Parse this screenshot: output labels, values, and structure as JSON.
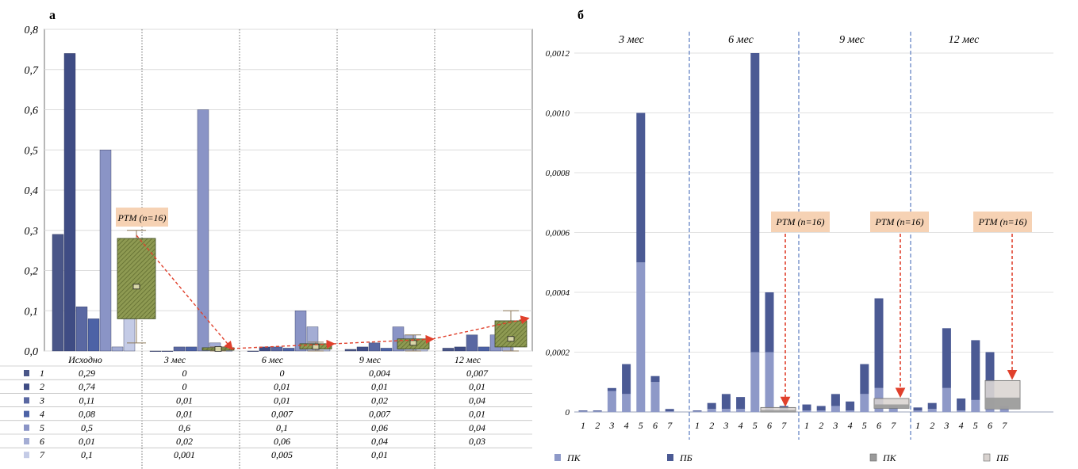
{
  "chart_data": [
    {
      "panel": "а",
      "type": "bar",
      "groups": [
        "Исходно",
        "3 мес",
        "6 мес",
        "9 мес",
        "12 мес"
      ],
      "ylim": [
        0,
        0.8
      ],
      "yticks": [
        "0,0",
        "0,1",
        "0,2",
        "0,3",
        "0,4",
        "0,5",
        "0,6",
        "0,7",
        "0,8"
      ],
      "series": [
        {
          "name": "1",
          "values": [
            0.29,
            0,
            0,
            0.004,
            0.007
          ],
          "labels": [
            "0,29",
            "0",
            "0",
            "0,004",
            "0,007"
          ]
        },
        {
          "name": "2",
          "values": [
            0.74,
            0,
            0.01,
            0.01,
            0.01
          ],
          "labels": [
            "0,74",
            "0",
            "0,01",
            "0,01",
            "0,01"
          ]
        },
        {
          "name": "3",
          "values": [
            0.11,
            0.01,
            0.01,
            0.02,
            0.04
          ],
          "labels": [
            "0,11",
            "0,01",
            "0,01",
            "0,02",
            "0,04"
          ]
        },
        {
          "name": "4",
          "values": [
            0.08,
            0.01,
            0.007,
            0.007,
            0.01
          ],
          "labels": [
            "0,08",
            "0,01",
            "0,007",
            "0,007",
            "0,01"
          ]
        },
        {
          "name": "5",
          "values": [
            0.5,
            0.6,
            0.1,
            0.06,
            0.04
          ],
          "labels": [
            "0,5",
            "0,6",
            "0,1",
            "0,06",
            "0,04"
          ]
        },
        {
          "name": "6",
          "values": [
            0.01,
            0.02,
            0.06,
            0.04,
            0.03
          ],
          "labels": [
            "0,01",
            "0,02",
            "0,06",
            "0,04",
            "0,03"
          ]
        },
        {
          "name": "7",
          "values": [
            0.1,
            0.001,
            0.005,
            0.01,
            null
          ],
          "labels": [
            "0,1",
            "0,001",
            "0,005",
            "0,01",
            ""
          ]
        }
      ],
      "box": {
        "label": "РТМ (n=16)",
        "by_group": [
          {
            "group": "Исходно",
            "q1": 0.08,
            "q3": 0.28,
            "median": 0.16,
            "min": 0.02,
            "max": 0.3
          },
          {
            "group": "3 мес",
            "q1": 0.002,
            "q3": 0.008,
            "median": 0.005,
            "min": 0.0,
            "max": 0.01
          },
          {
            "group": "6 мес",
            "q1": 0.005,
            "q3": 0.018,
            "median": 0.01,
            "min": 0.0,
            "max": 0.022
          },
          {
            "group": "9 мес",
            "q1": 0.005,
            "q3": 0.03,
            "median": 0.02,
            "min": 0.0,
            "max": 0.04
          },
          {
            "group": "12 мес",
            "q1": 0.01,
            "q3": 0.075,
            "median": 0.03,
            "min": 0.0,
            "max": 0.1
          }
        ]
      },
      "colors": [
        "#4a5688",
        "#3f4c84",
        "#5a68a2",
        "#4c62a6",
        "#8a94c6",
        "#a4add4",
        "#c4cbe6"
      ],
      "grid": true
    },
    {
      "panel": "б",
      "type": "bar",
      "stacked": true,
      "groups": [
        "3 мес",
        "6 мес",
        "9 мес",
        "12 мес"
      ],
      "categories": [
        "1",
        "2",
        "3",
        "4",
        "5",
        "6",
        "7"
      ],
      "ylim": [
        0,
        0.0012
      ],
      "yticks": [
        "0",
        "0,0002",
        "0,0004",
        "0,0006",
        "0,0008",
        "0,0010",
        "0,0012"
      ],
      "series": [
        {
          "name": "ПК",
          "values_by_group": [
            [
              2e-06,
              2e-06,
              7e-05,
              6e-05,
              0.0005,
              0.0001,
              2e-06
            ],
            [
              2e-06,
              1e-05,
              1e-05,
              1e-05,
              0.0002,
              0.0002,
              1e-05
            ],
            [
              5e-06,
              5e-06,
              2e-05,
              5e-06,
              6e-05,
              8e-05,
              1e-05
            ],
            [
              5e-06,
              1e-05,
              8e-05,
              5e-06,
              4e-05,
              0.0001,
              1e-05
            ]
          ]
        },
        {
          "name": "ПБ",
          "values_by_group": [
            [
              3e-06,
              3e-06,
              1e-05,
              0.0001,
              0.0005,
              2e-05,
              8e-06
            ],
            [
              3e-06,
              2e-05,
              5e-05,
              4e-05,
              0.001,
              0.0002,
              1e-05
            ],
            [
              2e-05,
              1.5e-05,
              4e-05,
              3e-05,
              0.0001,
              0.0003,
              1e-05
            ],
            [
              1e-05,
              2e-05,
              0.0002,
              4e-05,
              0.0002,
              0.0001,
              1e-05
            ]
          ]
        }
      ],
      "rtm_label": "РТМ (n=16)",
      "rtm_boxes": [
        {
          "group": "6 мес",
          "low": 0.0,
          "high": 1.5e-05
        },
        {
          "group": "9 мес",
          "low": 1.2e-05,
          "high": 4.5e-05
        },
        {
          "group": "12 мес",
          "low": 1e-05,
          "high": 0.000105
        }
      ],
      "legend": [
        {
          "name": "ПК",
          "kind": "bar"
        },
        {
          "name": "ПБ",
          "kind": "bar"
        },
        {
          "name": "ПК",
          "kind": "box"
        },
        {
          "name": "ПБ",
          "kind": "box"
        }
      ],
      "colors": {
        "pk": "#8e99c8",
        "pb": "#4b5a94",
        "box_pk": "#9a9a9a",
        "box_pb": "#d8d2cf"
      },
      "grid": true
    }
  ]
}
